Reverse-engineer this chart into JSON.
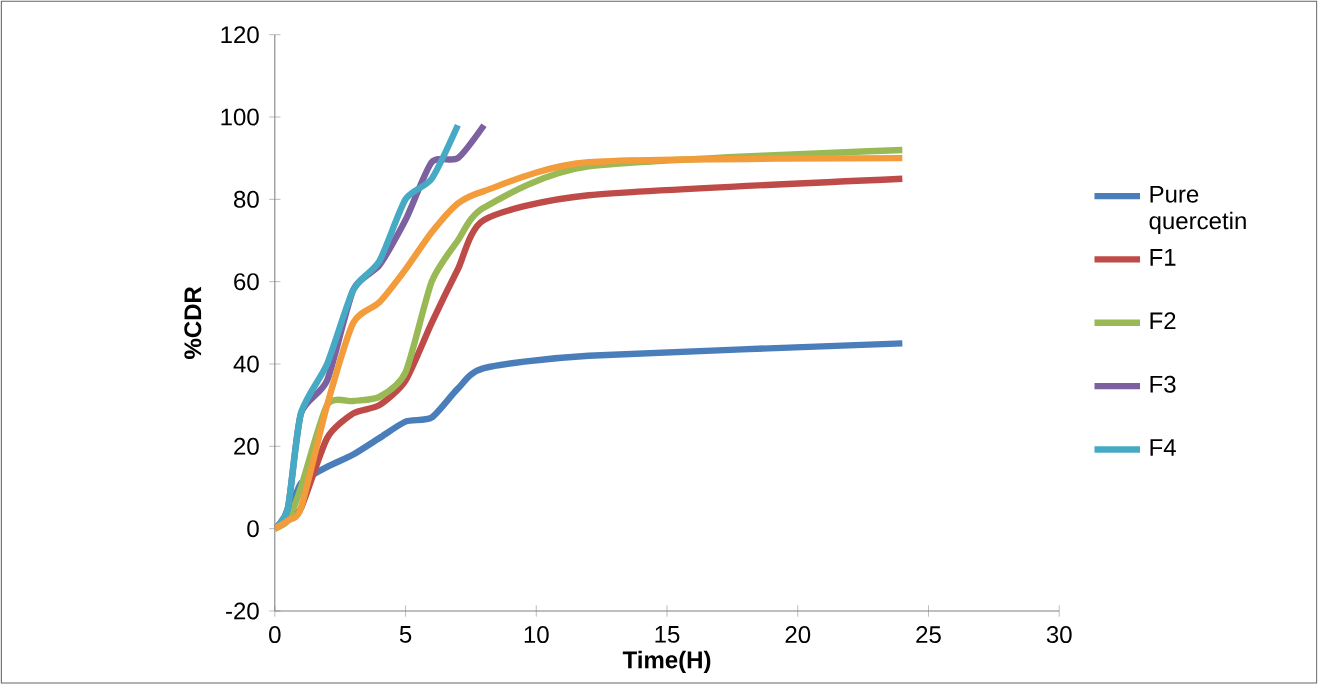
{
  "chart_data": {
    "type": "line",
    "xlabel": "Time(H)",
    "ylabel": "%CDR",
    "xlim": [
      0,
      30
    ],
    "ylim": [
      -20,
      120
    ],
    "xticks": [
      0,
      5,
      10,
      15,
      20,
      25,
      30
    ],
    "yticks": [
      -20,
      0,
      20,
      40,
      60,
      80,
      100,
      120
    ],
    "grid": false,
    "legend": "right",
    "marker": "none",
    "line_style": "solid",
    "series": [
      {
        "name": "Pure quercetin",
        "color": "#4a7ebb",
        "x": [
          0,
          0.5,
          1,
          2,
          3,
          4,
          5,
          6,
          7,
          8,
          12,
          24
        ],
        "values": [
          0,
          3,
          11,
          15,
          18,
          22,
          26,
          27,
          34,
          39,
          42,
          45
        ]
      },
      {
        "name": "F1",
        "color": "#be4b48",
        "x": [
          0,
          0.5,
          1,
          2,
          3,
          4,
          5,
          6,
          7,
          8,
          12,
          24
        ],
        "values": [
          0,
          2,
          5,
          22,
          28,
          30,
          36,
          50,
          63,
          75,
          81,
          85
        ]
      },
      {
        "name": "F2",
        "color": "#98b954",
        "x": [
          0,
          0.5,
          1,
          2,
          3,
          4,
          5,
          6,
          7,
          8,
          12,
          24
        ],
        "values": [
          0,
          2,
          10,
          30,
          31,
          32,
          38,
          60,
          70,
          78,
          88,
          92
        ]
      },
      {
        "name": "F3",
        "color": "#7d60a0",
        "x": [
          0,
          0.5,
          1,
          2,
          3,
          4,
          5,
          6,
          7,
          8
        ],
        "values": [
          0,
          5,
          28,
          36,
          58,
          64,
          75,
          89,
          90,
          98
        ]
      },
      {
        "name": "F4",
        "color": "#46aac5",
        "x": [
          0,
          0.5,
          1,
          2,
          3,
          4,
          5,
          6,
          7
        ],
        "values": [
          0,
          5,
          28,
          40,
          58,
          65,
          80,
          85,
          98
        ]
      },
      {
        "color": "#f39c3c",
        "x": [
          0,
          0.5,
          1,
          2,
          3,
          4,
          5,
          6,
          7,
          8,
          12,
          24
        ],
        "values": [
          0,
          2,
          5,
          30,
          50,
          55,
          63,
          72,
          79,
          82,
          89,
          90
        ]
      }
    ]
  }
}
